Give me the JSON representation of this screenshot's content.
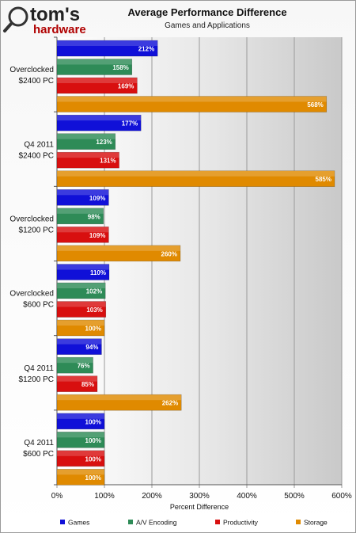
{
  "logo": {
    "brand": "tom's",
    "sub": "hardware"
  },
  "chart_data": {
    "type": "bar",
    "orientation": "horizontal",
    "title": "Average Performance Difference",
    "subtitle": "Games and Applications",
    "xlabel": "Percent Difference",
    "xlim": [
      0,
      600
    ],
    "xticks": [
      "0%",
      "100%",
      "200%",
      "300%",
      "400%",
      "500%",
      "600%"
    ],
    "value_suffix": "%",
    "grid": true,
    "legend_position": "bottom",
    "categories": [
      [
        "Overclocked",
        "$2400 PC"
      ],
      [
        "Q4 2011",
        "$2400 PC"
      ],
      [
        "Overclocked",
        "$1200 PC"
      ],
      [
        "Overclocked",
        "$600 PC"
      ],
      [
        "Q4 2011",
        "$1200 PC"
      ],
      [
        "Q4 2011",
        "$600 PC"
      ]
    ],
    "series": [
      {
        "name": "Games",
        "color": "#1010d8",
        "values": [
          212,
          177,
          109,
          110,
          94,
          100
        ]
      },
      {
        "name": "A/V Encoding",
        "color": "#2e8b57",
        "values": [
          158,
          123,
          98,
          102,
          76,
          100
        ]
      },
      {
        "name": "Productivity",
        "color": "#d80f0f",
        "values": [
          169,
          131,
          109,
          103,
          85,
          100
        ]
      },
      {
        "name": "Storage",
        "color": "#e08a00",
        "values": [
          568,
          585,
          260,
          100,
          262,
          100
        ]
      }
    ]
  }
}
